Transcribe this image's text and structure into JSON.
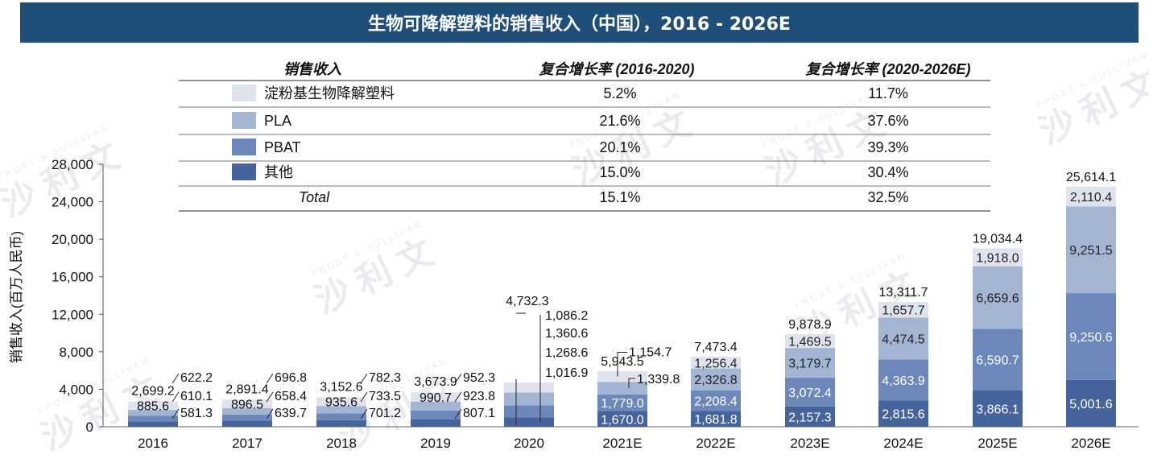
{
  "title": "生物可降解塑料的销售收入（中国），2016 - 2026E",
  "legend_table": {
    "headers": [
      "销售收入",
      "复合增长率 (2016-2020)",
      "复合增长率 (2020-2026E)"
    ],
    "rows": [
      {
        "name": "淀粉基生物降解塑料",
        "cagr1": "5.2%",
        "cagr2": "11.7%",
        "color": "#dee3ee"
      },
      {
        "name": "PLA",
        "cagr1": "21.6%",
        "cagr2": "37.6%",
        "color": "#a4b4d3"
      },
      {
        "name": "PBAT",
        "cagr1": "20.1%",
        "cagr2": "39.3%",
        "color": "#6c88bb"
      },
      {
        "name": "其他",
        "cagr1": "15.0%",
        "cagr2": "30.4%",
        "color": "#46649c"
      },
      {
        "name": "Total",
        "cagr1": "15.1%",
        "cagr2": "32.5%",
        "color": ""
      }
    ]
  },
  "watermark": {
    "text": "沙利文",
    "sub": "FROST & SULLIVAN"
  },
  "chart_data": {
    "type": "bar",
    "stacked": true,
    "ylabel": "销售收入(百万人民币)",
    "ylim": [
      0,
      28000
    ],
    "yticks": [
      "0",
      "4,000",
      "8,000",
      "12,000",
      "16,000",
      "20,000",
      "24,000",
      "28,000"
    ],
    "categories": [
      "2016",
      "2017",
      "2018",
      "2019",
      "2020",
      "2021E",
      "2022E",
      "2023E",
      "2024E",
      "2025E",
      "2026E"
    ],
    "series": [
      {
        "name": "其他",
        "values": [
          581.3,
          639.7,
          701.2,
          807.1,
          1016.9,
          1670.0,
          1681.8,
          2157.3,
          2815.6,
          3866.1,
          5001.6
        ],
        "labels": [
          "581.3",
          "639.7",
          "701.2",
          "807.1",
          "1,016.9",
          "1,670.0",
          "1,681.8",
          "2,157.3",
          "2,815.6",
          "3,866.1",
          "5,001.6"
        ]
      },
      {
        "name": "PBAT",
        "values": [
          610.1,
          658.4,
          733.5,
          923.8,
          1268.6,
          1779.0,
          2208.4,
          3072.4,
          4363.9,
          6590.7,
          9250.6
        ],
        "labels": [
          "610.1",
          "658.4",
          "733.5",
          "923.8",
          "1,268.6",
          "1,779.0",
          "2,208.4",
          "3,072.4",
          "4,363.9",
          "6,590.7",
          "9,250.6"
        ]
      },
      {
        "name": "PLA",
        "values": [
          622.2,
          696.8,
          782.3,
          952.3,
          1360.6,
          1339.8,
          2326.8,
          3179.7,
          4474.5,
          6659.6,
          9251.5
        ],
        "labels": [
          "622.2",
          "696.8",
          "782.3",
          "952.3",
          "1,360.6",
          "1,339.8",
          "2,326.8",
          "3,179.7",
          "4,474.5",
          "6,659.6",
          "9,251.5"
        ]
      },
      {
        "name": "淀粉基生物降解塑料",
        "values": [
          885.6,
          896.5,
          935.6,
          990.7,
          1086.2,
          1154.7,
          1256.4,
          1469.5,
          1657.7,
          1918.0,
          2110.4
        ],
        "labels": [
          "885.6",
          "896.5",
          "935.6",
          "990.7",
          "1,086.2",
          "1,154.7",
          "1,256.4",
          "1,469.5",
          "1,657.7",
          "1,918.0",
          "2,110.4"
        ]
      }
    ],
    "totals": [
      "2,699.2",
      "2,891.4",
      "3,152.6",
      "3,673.9",
      "4,732.3",
      "5,943.5",
      "7,473.4",
      "9,878.9",
      "13,311.7",
      "19,034.4",
      "25,614.1"
    ],
    "total_values": [
      2699.2,
      2891.4,
      3152.6,
      3673.9,
      4732.3,
      5943.5,
      7473.4,
      9878.9,
      13311.7,
      19034.4,
      25614.1
    ]
  }
}
